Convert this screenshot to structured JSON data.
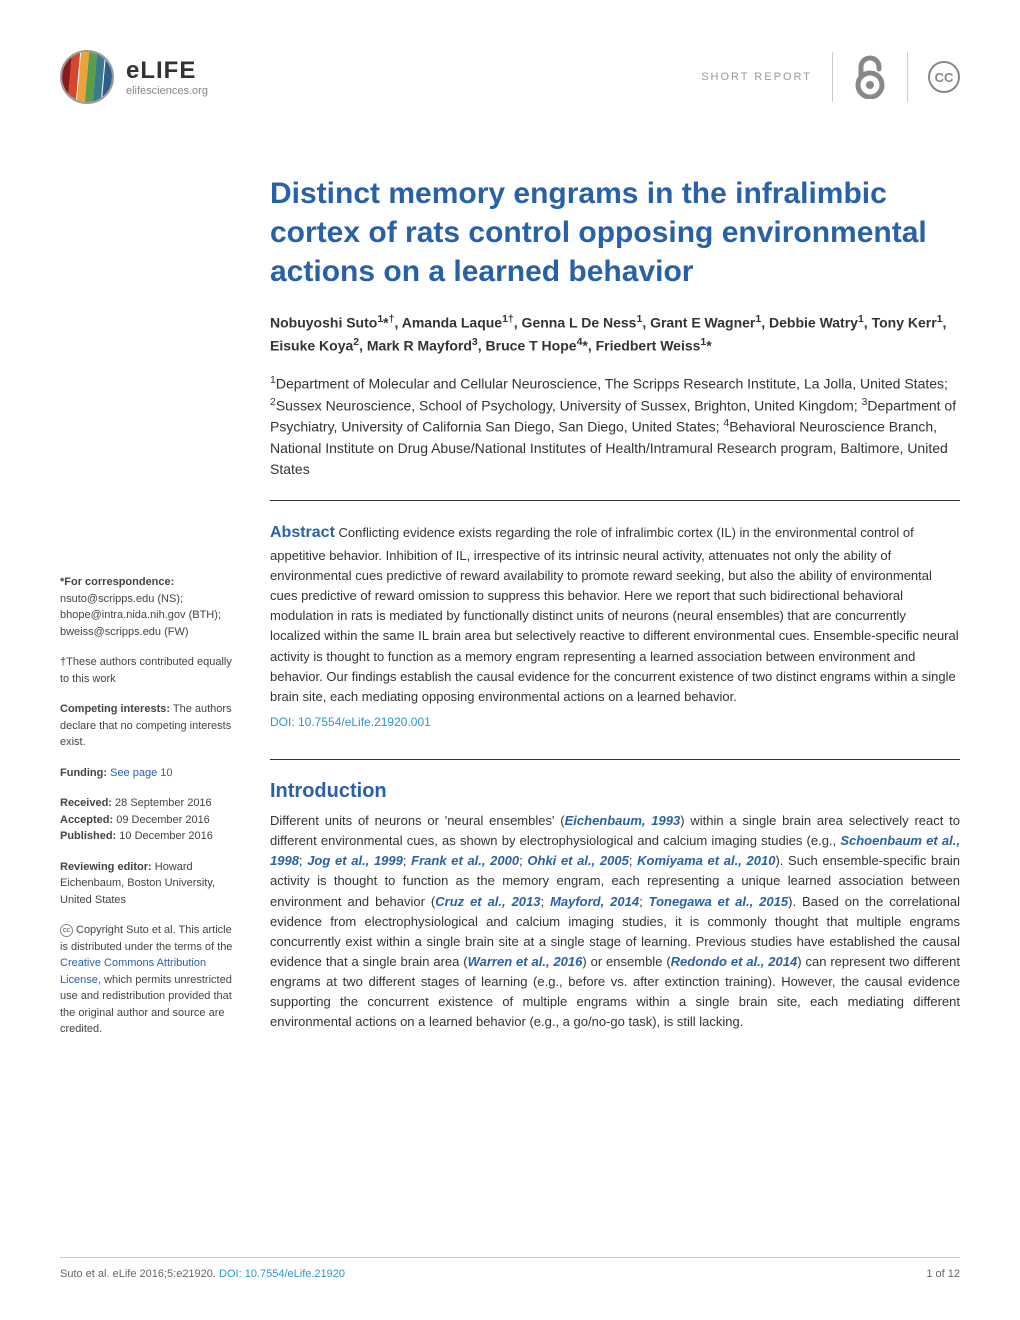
{
  "header": {
    "logo_name": "eLIFE",
    "logo_url": "elifesciences.org",
    "short_report": "SHORT REPORT",
    "cc_label": "CC",
    "logo_colors": [
      "#8b1a1a",
      "#d4472e",
      "#e8a43a",
      "#5a9e4a",
      "#3a7a8c",
      "#2d5f8d"
    ]
  },
  "article": {
    "title": "Distinct memory engrams in the infralimbic cortex of rats control opposing environmental actions on a learned behavior",
    "authors_html": "Nobuyoshi Suto<sup>1</sup>*<sup>†</sup>, Amanda Laque<sup>1†</sup>, Genna L De Ness<sup>1</sup>, Grant E Wagner<sup>1</sup>, Debbie Watry<sup>1</sup>, Tony Kerr<sup>1</sup>, Eisuke Koya<sup>2</sup>, Mark R Mayford<sup>3</sup>, Bruce T Hope<sup>4</sup>*, Friedbert Weiss<sup>1</sup>*",
    "affiliations_html": "<sup>1</sup>Department of Molecular and Cellular Neuroscience, The Scripps Research Institute, La Jolla, United States; <sup>2</sup>Sussex Neuroscience, School of Psychology, University of Sussex, Brighton, United Kingdom; <sup>3</sup>Department of Psychiatry, University of California San Diego, San Diego, United States; <sup>4</sup>Behavioral Neuroscience Branch, National Institute on Drug Abuse/National Institutes of Health/Intramural Research program, Baltimore, United States",
    "abstract_label": "Abstract",
    "abstract_text": "Conflicting evidence exists regarding the role of infralimbic cortex (IL) in the environmental control of appetitive behavior. Inhibition of IL, irrespective of its intrinsic neural activity, attenuates not only the ability of environmental cues predictive of reward availability to promote reward seeking, but also the ability of environmental cues predictive of reward omission to suppress this behavior. Here we report that such bidirectional behavioral modulation in rats is mediated by functionally distinct units of neurons (neural ensembles) that are concurrently localized within the same IL brain area but selectively reactive to different environmental cues. Ensemble-specific neural activity is thought to function as a memory engram representing a learned association between environment and behavior. Our findings establish the causal evidence for the concurrent existence of two distinct engrams within a single brain site, each mediating opposing environmental actions on a learned behavior.",
    "doi": "DOI: 10.7554/eLife.21920.001",
    "intro_heading": "Introduction",
    "intro_html": "Different units of neurons or 'neural ensembles' (<span class='citation-link'>Eichenbaum, 1993</span>) within a single brain area selectively react to different environmental cues, as shown by electrophysiological and calcium imaging studies (e.g., <span class='citation-link'>Schoenbaum et al., 1998</span>; <span class='citation-link'>Jog et al., 1999</span>; <span class='citation-link'>Frank et al., 2000</span>; <span class='citation-link'>Ohki et al., 2005</span>; <span class='citation-link'>Komiyama et al., 2010</span>). Such ensemble-specific brain activity is thought to function as the memory engram, each representing a unique learned association between environment and behavior (<span class='citation-link'>Cruz et al., 2013</span>; <span class='citation-link'>Mayford, 2014</span>; <span class='citation-link'>Tonegawa et al., 2015</span>). Based on the correlational evidence from electrophysiological and calcium imaging studies, it is commonly thought that multiple engrams concurrently exist within a single brain site at a single stage of learning. Previous studies have established the causal evidence that a single brain area (<span class='citation-link'>Warren et al., 2016</span>) or ensemble (<span class='citation-link'>Redondo et al., 2014</span>) can represent two different engrams at two different stages of learning (e.g., before vs. after extinction training). However, the causal evidence supporting the concurrent existence of multiple engrams within a single brain site, each mediating different environmental actions on a learned behavior (e.g., a go/no-go task), is still lacking."
  },
  "sidebar": {
    "correspondence_label": "*For correspondence:",
    "correspondence_text": " nsuto@scripps.edu (NS); bhope@intra.nida.nih.gov (BTH); bweiss@scripps.edu (FW)",
    "equal_contrib": "†These authors contributed equally to this work",
    "competing_label": "Competing interests:",
    "competing_text": " The authors declare that no competing interests exist.",
    "funding_label": "Funding:",
    "funding_link": " See page 10",
    "received_label": "Received:",
    "received_date": " 28 September 2016",
    "accepted_label": "Accepted:",
    "accepted_date": " 09 December 2016",
    "published_label": "Published:",
    "published_date": " 10 December 2016",
    "editor_label": "Reviewing editor:",
    "editor_text": " Howard Eichenbaum, Boston University, United States",
    "copyright_text": "Copyright Suto et al. This article is distributed under the terms of the ",
    "license_link": "Creative Commons Attribution License,",
    "copyright_text2": " which permits unrestricted use and redistribution provided that the original author and source are credited."
  },
  "footer": {
    "citation": "Suto et al. eLife 2016;5:e21920. ",
    "doi": "DOI: 10.7554/eLife.21920",
    "page": "1 of 12"
  },
  "colors": {
    "primary_blue": "#2961a8",
    "link_blue": "#2b96c9",
    "text": "#333333",
    "muted": "#888888"
  }
}
